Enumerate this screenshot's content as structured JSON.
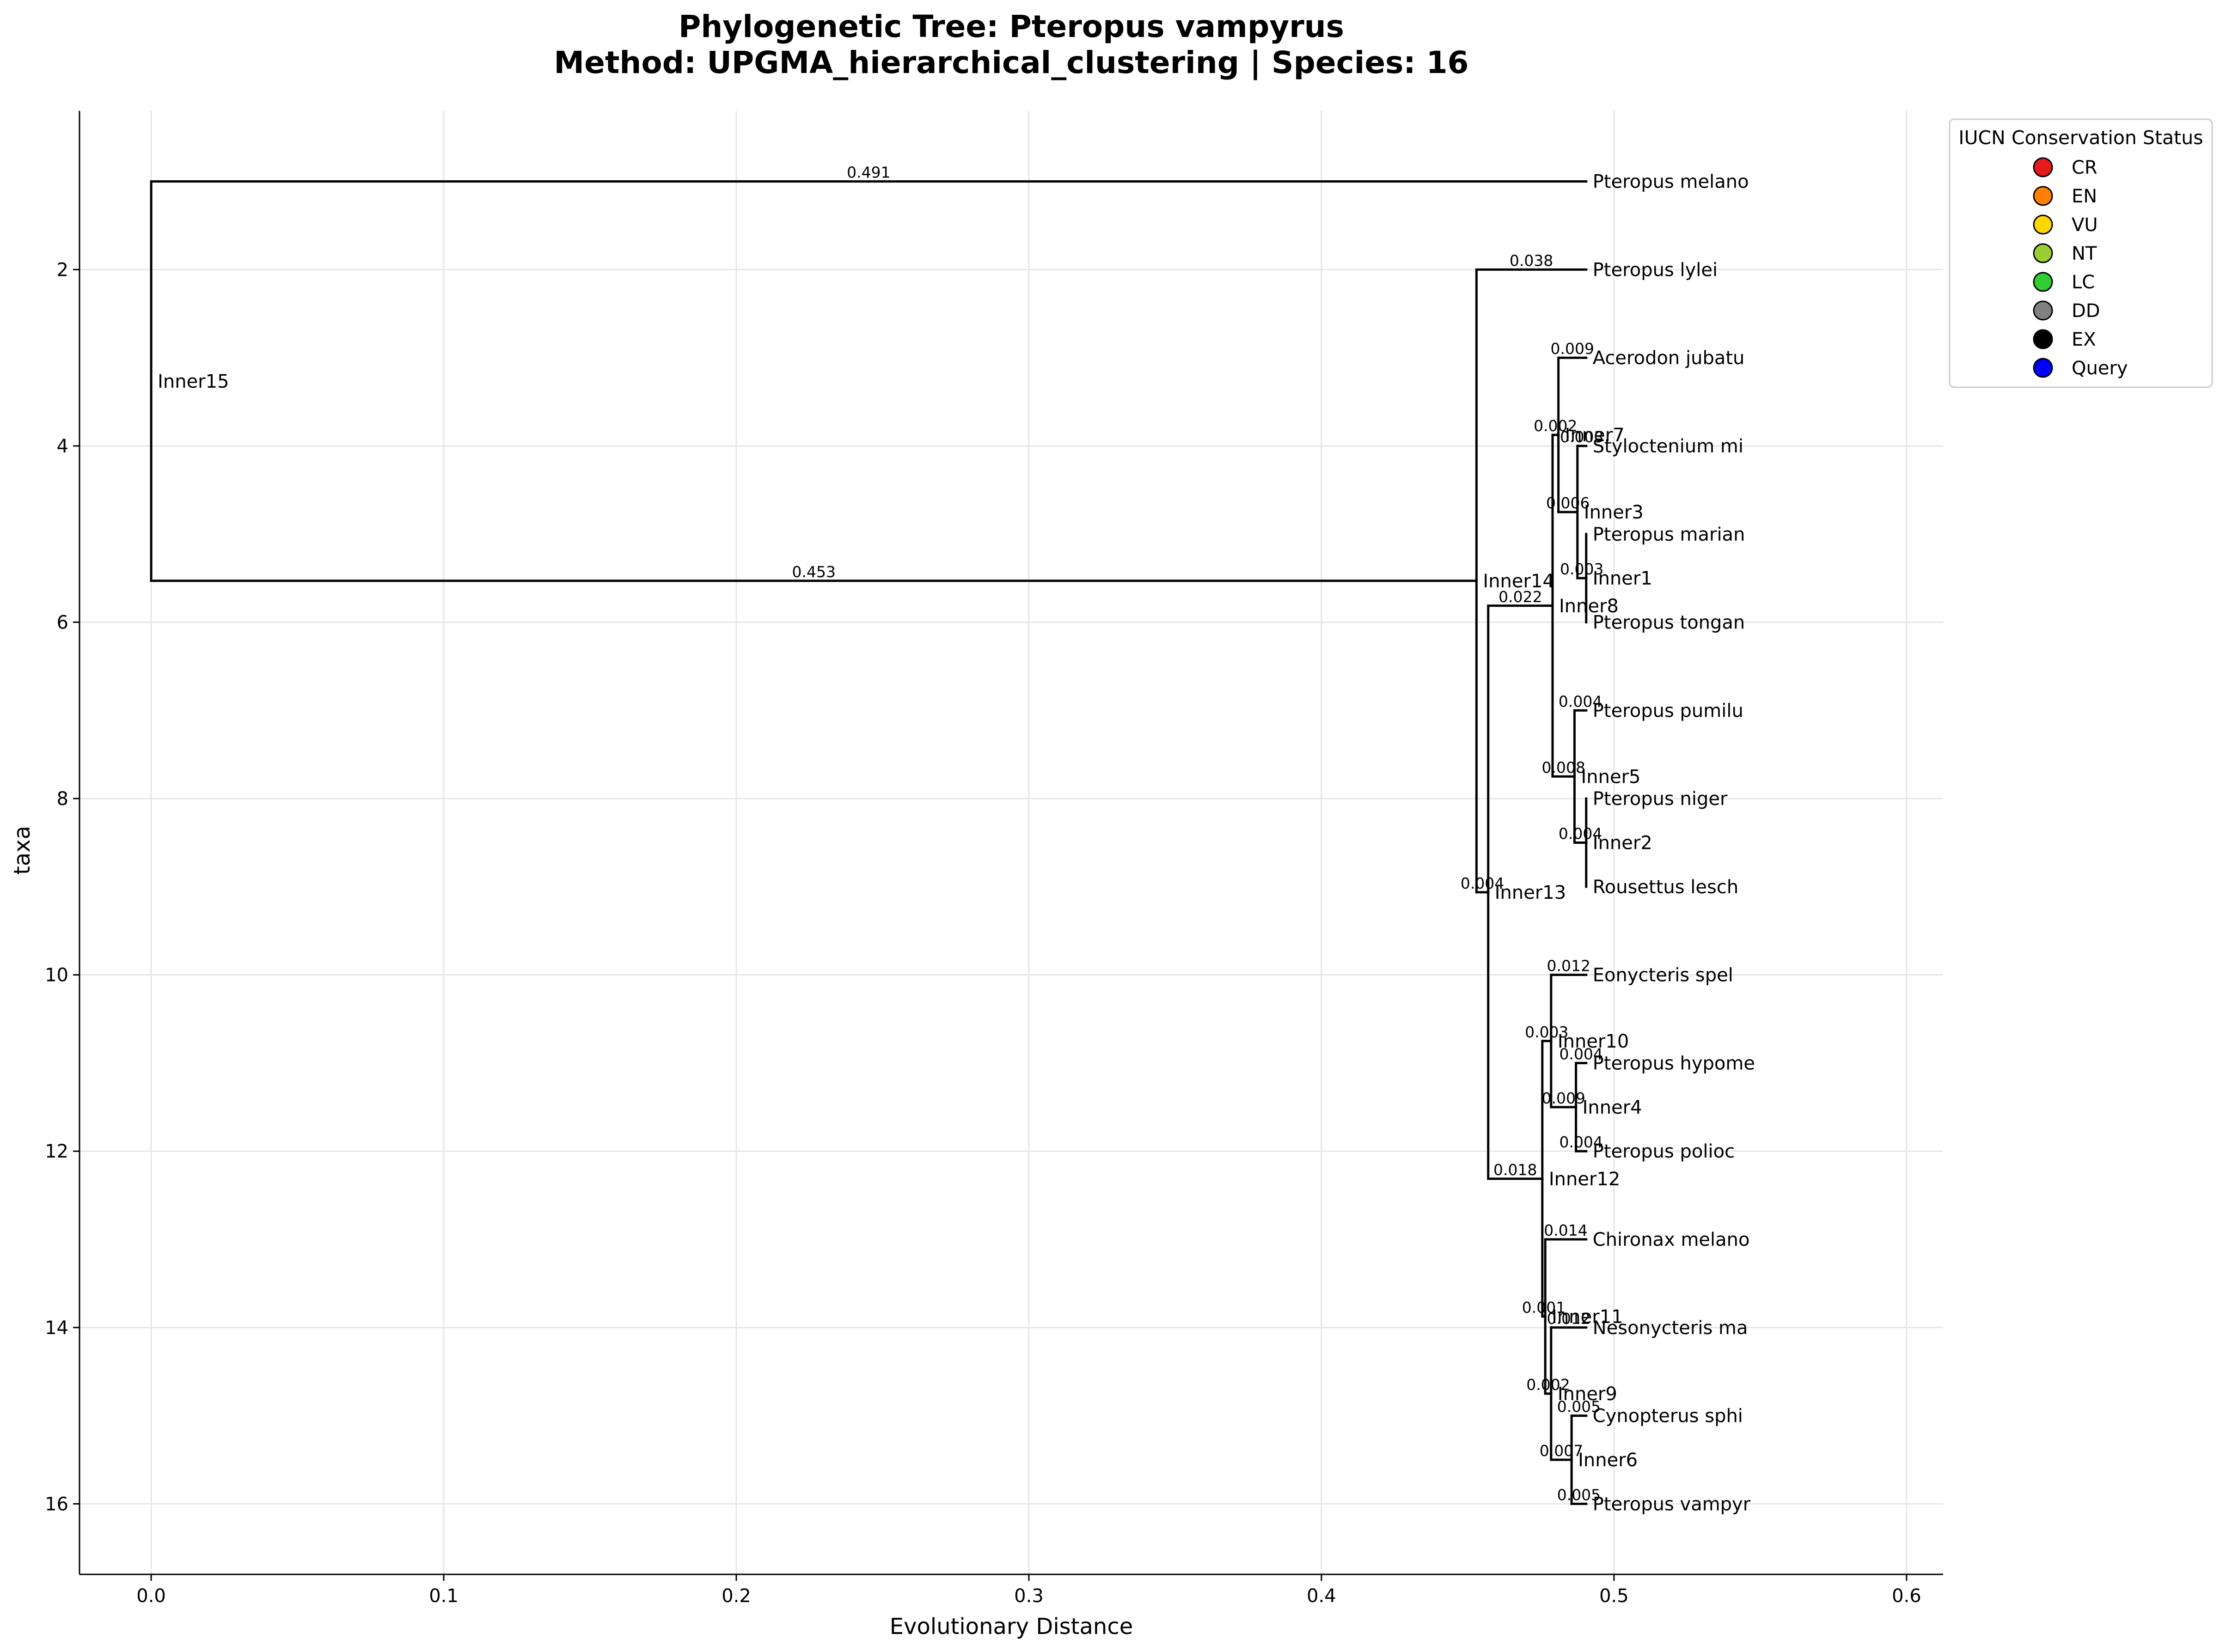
{
  "chart_data": {
    "type": "dendrogram",
    "title_line1": "Phylogenetic Tree: Pteropus vampyrus",
    "title_line2": "Method: UPGMA_hierarchical_clustering | Species: 16",
    "xlabel": "Evolutionary Distance",
    "ylabel": "taxa",
    "xlim": [
      -0.0245,
      0.6125
    ],
    "ylim": [
      16.8,
      0.2
    ],
    "xticks": [
      "0.0",
      "0.1",
      "0.2",
      "0.3",
      "0.4",
      "0.5",
      "0.6"
    ],
    "xtick_values": [
      0,
      0.1,
      0.2,
      0.3,
      0.4,
      0.5,
      0.6
    ],
    "yticks": [
      "2",
      "4",
      "6",
      "8",
      "10",
      "12",
      "14",
      "16"
    ],
    "ytick_values": [
      2,
      4,
      6,
      8,
      10,
      12,
      14,
      16
    ],
    "grid": true,
    "leaves": [
      {
        "name": "Pteropus melano",
        "y": 1
      },
      {
        "name": "Pteropus lylei",
        "y": 2
      },
      {
        "name": "Acerodon jubatu",
        "y": 3
      },
      {
        "name": "Styloctenium mi",
        "y": 4
      },
      {
        "name": "Pteropus marian",
        "y": 5
      },
      {
        "name": "Pteropus tongan",
        "y": 6
      },
      {
        "name": "Pteropus pumilu",
        "y": 7
      },
      {
        "name": "Pteropus niger",
        "y": 8
      },
      {
        "name": "Rousettus lesch",
        "y": 9
      },
      {
        "name": "Eonycteris spel",
        "y": 10
      },
      {
        "name": "Pteropus hypome",
        "y": 11
      },
      {
        "name": "Pteropus polioc",
        "y": 12
      },
      {
        "name": "Chironax melano",
        "y": 13
      },
      {
        "name": "Nesonycteris ma",
        "y": 14
      },
      {
        "name": "Cynopterus sphi",
        "y": 15
      },
      {
        "name": "Pteropus vampyr",
        "y": 16
      }
    ],
    "internal_nodes": [
      {
        "name": "Inner1",
        "x": 0.4905,
        "y": 5.5
      },
      {
        "name": "Inner2",
        "x": 0.4905,
        "y": 8.5
      },
      {
        "name": "Inner3",
        "x": 0.4875,
        "y": 4.75
      },
      {
        "name": "Inner4",
        "x": 0.487,
        "y": 11.5
      },
      {
        "name": "Inner5",
        "x": 0.4865,
        "y": 7.75
      },
      {
        "name": "Inner6",
        "x": 0.4855,
        "y": 15.5
      },
      {
        "name": "Inner7",
        "x": 0.481,
        "y": 3.875
      },
      {
        "name": "Inner8",
        "x": 0.479,
        "y": 5.8125
      },
      {
        "name": "Inner9",
        "x": 0.4785,
        "y": 14.75
      },
      {
        "name": "Inner10",
        "x": 0.4785,
        "y": 10.75
      },
      {
        "name": "Inner11",
        "x": 0.4765,
        "y": 13.875
      },
      {
        "name": "Inner12",
        "x": 0.4755,
        "y": 12.3125
      },
      {
        "name": "Inner13",
        "x": 0.457,
        "y": 9.0625
      },
      {
        "name": "Inner14",
        "x": 0.453,
        "y": 5.53
      },
      {
        "name": "Inner15",
        "x": 0.0,
        "y": 3.265
      }
    ],
    "leaf_x": 0.4905,
    "edges": [
      {
        "child": "Pteropus melano",
        "parent": "Inner15",
        "length": "0.491"
      },
      {
        "child": "Inner14",
        "parent": "Inner15",
        "length": "0.453"
      },
      {
        "child": "Pteropus lylei",
        "parent": "Inner14",
        "length": "0.038"
      },
      {
        "child": "Inner13",
        "parent": "Inner14",
        "length": "0.004"
      },
      {
        "child": "Inner8",
        "parent": "Inner13",
        "length": "0.022"
      },
      {
        "child": "Inner12",
        "parent": "Inner13",
        "length": "0.018"
      },
      {
        "child": "Inner7",
        "parent": "Inner8",
        "length": "0.002"
      },
      {
        "child": "Inner5",
        "parent": "Inner8",
        "length": "0.008"
      },
      {
        "child": "Acerodon jubatu",
        "parent": "Inner7",
        "length": "0.009"
      },
      {
        "child": "Inner3",
        "parent": "Inner7",
        "length": "0.006"
      },
      {
        "child": "Styloctenium mi",
        "parent": "Inner3",
        "length": "0.003"
      },
      {
        "child": "Inner1",
        "parent": "Inner3",
        "length": "0.003"
      },
      {
        "child": "Pteropus marian",
        "parent": "Inner1",
        "length": ""
      },
      {
        "child": "Pteropus tongan",
        "parent": "Inner1",
        "length": ""
      },
      {
        "child": "Pteropus pumilu",
        "parent": "Inner5",
        "length": "0.004"
      },
      {
        "child": "Inner2",
        "parent": "Inner5",
        "length": "0.004"
      },
      {
        "child": "Pteropus niger",
        "parent": "Inner2",
        "length": ""
      },
      {
        "child": "Rousettus lesch",
        "parent": "Inner2",
        "length": ""
      },
      {
        "child": "Inner10",
        "parent": "Inner12",
        "length": "0.003"
      },
      {
        "child": "Inner11",
        "parent": "Inner12",
        "length": "0.001"
      },
      {
        "child": "Eonycteris spel",
        "parent": "Inner10",
        "length": "0.012"
      },
      {
        "child": "Inner4",
        "parent": "Inner10",
        "length": "0.009"
      },
      {
        "child": "Pteropus hypome",
        "parent": "Inner4",
        "length": "0.004"
      },
      {
        "child": "Pteropus polioc",
        "parent": "Inner4",
        "length": "0.004"
      },
      {
        "child": "Chironax melano",
        "parent": "Inner11",
        "length": "0.014"
      },
      {
        "child": "Inner9",
        "parent": "Inner11",
        "length": "0.002"
      },
      {
        "child": "Nesonycteris ma",
        "parent": "Inner9",
        "length": "0.012"
      },
      {
        "child": "Inner6",
        "parent": "Inner9",
        "length": "0.007"
      },
      {
        "child": "Cynopterus sphi",
        "parent": "Inner6",
        "length": "0.005"
      },
      {
        "child": "Pteropus vampyr",
        "parent": "Inner6",
        "length": "0.005"
      }
    ],
    "legend": {
      "title": "IUCN Conservation Status",
      "placement": "outside-top-right",
      "items": [
        {
          "label": "CR",
          "color": "#e41a1c"
        },
        {
          "label": "EN",
          "color": "#ff7f00"
        },
        {
          "label": "VU",
          "color": "#ffd700"
        },
        {
          "label": "NT",
          "color": "#9acd32"
        },
        {
          "label": "LC",
          "color": "#32cd32"
        },
        {
          "label": "DD",
          "color": "#808080"
        },
        {
          "label": "EX",
          "color": "#000000"
        },
        {
          "label": "Query",
          "color": "#0000ff"
        }
      ]
    }
  }
}
